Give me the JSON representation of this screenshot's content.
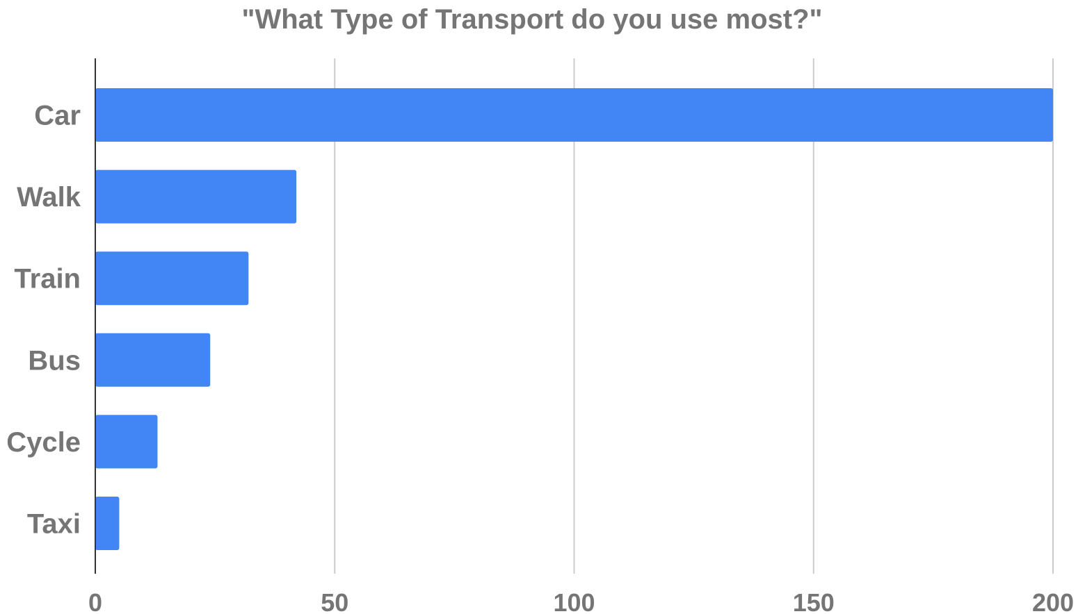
{
  "chart_data": {
    "type": "bar",
    "orientation": "horizontal",
    "title": "\"What Type of Transport do you use most?\"",
    "xlabel": "",
    "ylabel": "",
    "categories": [
      "Car",
      "Walk",
      "Train",
      "Bus",
      "Cycle",
      "Taxi"
    ],
    "values": [
      200,
      42,
      32,
      24,
      13,
      5
    ],
    "xlim": [
      0,
      200
    ],
    "xticks": [
      0,
      50,
      100,
      150,
      200
    ],
    "grid": "vertical",
    "legend": "none",
    "colors": {
      "bar": "#4285f4",
      "grid": "#cccccc",
      "axis": "#333333",
      "text": "#757575"
    }
  }
}
